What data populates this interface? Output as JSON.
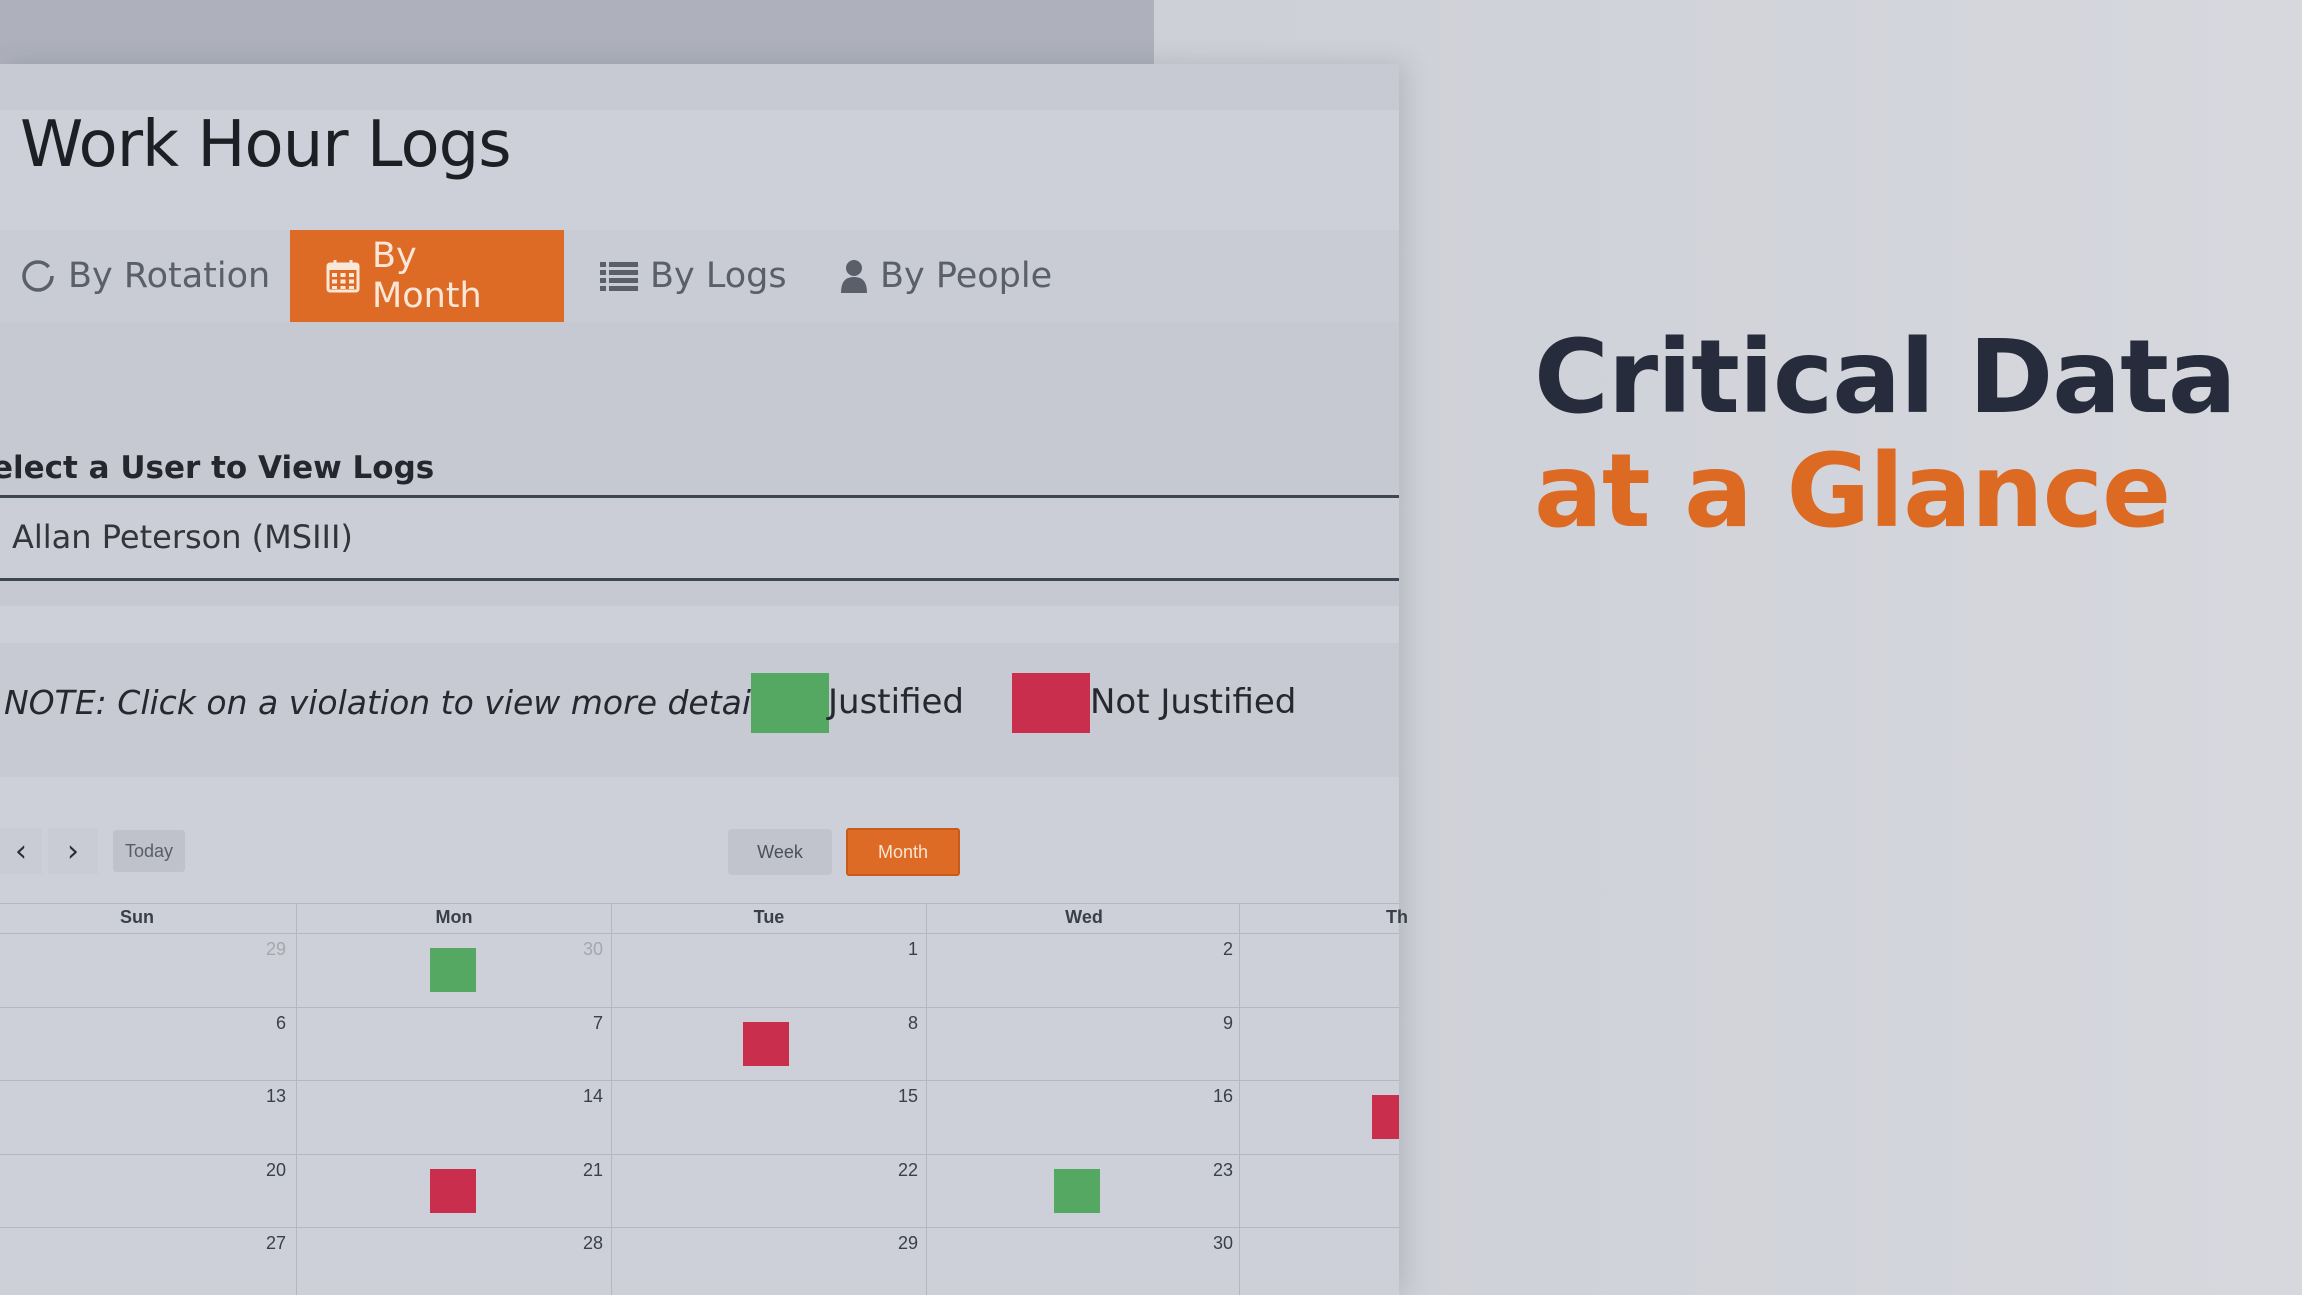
{
  "page": {
    "title": "Work Hour Logs"
  },
  "tabs": [
    {
      "label": "By Rotation",
      "icon": "spinner-icon",
      "active": false
    },
    {
      "label": "By Month",
      "icon": "calendar-icon",
      "active": true
    },
    {
      "label": "By Logs",
      "icon": "list-icon",
      "active": false
    },
    {
      "label": "By People",
      "icon": "user-icon",
      "active": false
    }
  ],
  "user_select": {
    "label": "elect a User to View Logs",
    "value": "Allan Peterson (MSIII)"
  },
  "legend": {
    "note": "NOTE: Click on a violation to view more details",
    "justified": "Justified",
    "not_justified": "Not Justified",
    "justified_color": "#55a861",
    "not_justified_color": "#c92f4d"
  },
  "calendar": {
    "prev": "‹",
    "next": "›",
    "today": "Today",
    "week": "Week",
    "month": "Month",
    "view": "Month",
    "days": [
      "Sun",
      "Mon",
      "Tue",
      "Wed",
      "Th"
    ],
    "weeks": [
      [
        "29",
        "30",
        "1",
        "2",
        ""
      ],
      [
        "6",
        "7",
        "8",
        "9",
        ""
      ],
      [
        "13",
        "14",
        "15",
        "16",
        ""
      ],
      [
        "20",
        "21",
        "22",
        "23",
        ""
      ],
      [
        "27",
        "28",
        "29",
        "30",
        ""
      ]
    ],
    "events": [
      {
        "week": 0,
        "day": "Mon",
        "status": "justified"
      },
      {
        "week": 1,
        "day": "Tue",
        "status": "not_justified"
      },
      {
        "week": 2,
        "day": "Th",
        "status": "not_justified"
      },
      {
        "week": 3,
        "day": "Mon",
        "status": "not_justified"
      },
      {
        "week": 3,
        "day": "Wed",
        "status": "justified"
      }
    ]
  },
  "hero": {
    "line1": "Critical Data",
    "line2": "at a Glance"
  },
  "colors": {
    "accent": "#dd6a25",
    "hero_dark": "#262c3c",
    "hero_orange": "#dc6a23"
  }
}
